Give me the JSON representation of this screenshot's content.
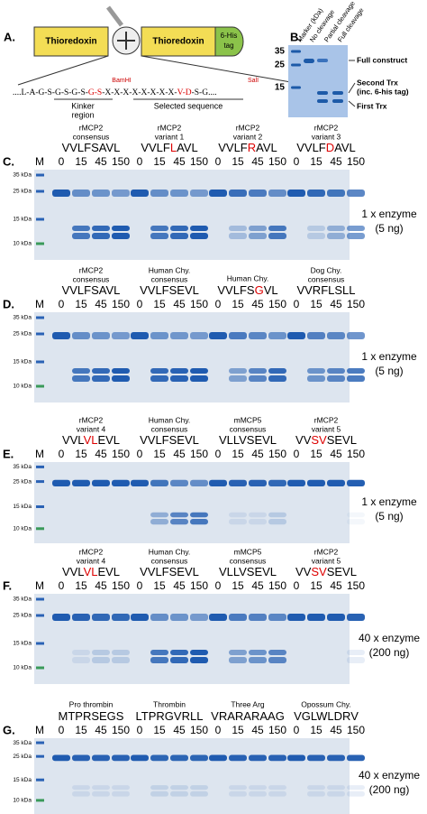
{
  "panelA": {
    "label": "A.",
    "box1": "Thioredoxin",
    "box2": "Thioredoxin",
    "tag": [
      "6-His",
      "tag"
    ],
    "sequence": [
      "....L-A-G-S-G-S-G-S-",
      "G-S",
      "-X-X-X-X-X-X-X-X-",
      "V-D",
      "-S-G...."
    ],
    "bamhi": "BamHI",
    "sali": "SalI",
    "kinker": [
      "Kinker",
      "region"
    ],
    "selected": "Selected sequence"
  },
  "panelB": {
    "label": "B.",
    "columns": [
      "Marker (kDa)",
      "No cleavage",
      "Partial cleavage",
      "Full cleavage"
    ],
    "markers": [
      "35",
      "25",
      "15"
    ],
    "annotations": [
      "Full construct",
      "Second Trx",
      "(inc. 6-his tag)",
      "First Trx"
    ]
  },
  "gels": [
    {
      "label": "C.",
      "marker_lane": "M",
      "markers": [
        "35 kDa",
        "25 kDa",
        "15 kDa",
        "10 kDa"
      ],
      "lanes": [
        "0",
        "15",
        "45",
        "150"
      ],
      "enzyme": "1 x enzyme",
      "amount": "(5 ng)",
      "groups": [
        {
          "name": [
            "rMCP2",
            "consensus"
          ],
          "sequence": [
            "VVLFSAVL"
          ]
        },
        {
          "name": [
            "rMCP2",
            "variant 1"
          ],
          "sequence": [
            "VVLF",
            "L",
            "AVL"
          ]
        },
        {
          "name": [
            "rMCP2",
            "variant 2"
          ],
          "sequence": [
            "VVLF",
            "R",
            "AVL"
          ]
        },
        {
          "name": [
            "rMCP2",
            "variant 3"
          ],
          "sequence": [
            "VVLF",
            "D",
            "AVL"
          ]
        }
      ]
    },
    {
      "label": "D.",
      "marker_lane": "M",
      "markers": [
        "35 kDa",
        "25 kDa",
        "15 kDa",
        "10 kDa"
      ],
      "lanes": [
        "0",
        "15",
        "45",
        "150"
      ],
      "enzyme": "1 x enzyme",
      "amount": "(5 ng)",
      "groups": [
        {
          "name": [
            "rMCP2",
            "consensus"
          ],
          "sequence": [
            "VVLFSAVL"
          ]
        },
        {
          "name": [
            "Human Chy.",
            "consensus"
          ],
          "sequence": [
            "VVLFSEVL"
          ]
        },
        {
          "name": [
            "Human Chy."
          ],
          "sequence": [
            "VVLFS",
            "G",
            "VL"
          ]
        },
        {
          "name": [
            "Dog Chy.",
            "consensus"
          ],
          "sequence": [
            "VVRFLSLL"
          ]
        }
      ]
    },
    {
      "label": "E.",
      "marker_lane": "M",
      "markers": [
        "35 kDa",
        "25 kDa",
        "15 kDa",
        "10 kDa"
      ],
      "lanes": [
        "0",
        "15",
        "45",
        "150"
      ],
      "enzyme": "1 x enzyme",
      "amount": "(5 ng)",
      "groups": [
        {
          "name": [
            "rMCP2",
            "variant 4"
          ],
          "sequence": [
            "VVL",
            "VL",
            "EVL"
          ]
        },
        {
          "name": [
            "Human Chy.",
            "consensus"
          ],
          "sequence": [
            "VVLFSEVL"
          ]
        },
        {
          "name": [
            "mMCP5",
            "consensus"
          ],
          "sequence": [
            "VLLVSEVL"
          ]
        },
        {
          "name": [
            "rMCP2",
            "variant 5"
          ],
          "sequence": [
            "VV",
            "SV",
            "SEVL"
          ]
        }
      ]
    },
    {
      "label": "F.",
      "marker_lane": "M",
      "markers": [
        "35 kDa",
        "25 kDa",
        "15 kDa",
        "10 kDa"
      ],
      "lanes": [
        "0",
        "15",
        "45",
        "150"
      ],
      "enzyme": "40 x enzyme",
      "amount": "(200 ng)",
      "groups": [
        {
          "name": [
            "rMCP2",
            "variant 4"
          ],
          "sequence": [
            "VVL",
            "VL",
            "EVL"
          ]
        },
        {
          "name": [
            "Human Chy.",
            "consensus"
          ],
          "sequence": [
            "VVLFSEVL"
          ]
        },
        {
          "name": [
            "mMCP5",
            "consensus"
          ],
          "sequence": [
            "VLLVSEVL"
          ]
        },
        {
          "name": [
            "rMCP2",
            "variant 5"
          ],
          "sequence": [
            "VV",
            "SV",
            "SEVL"
          ]
        }
      ]
    },
    {
      "label": "G.",
      "marker_lane": "M",
      "markers": [
        "35 kDa",
        "25 kDa",
        "15 kDa",
        "10 kDa"
      ],
      "lanes": [
        "0",
        "15",
        "45",
        "150"
      ],
      "enzyme": "40 x enzyme",
      "amount": "(200 ng)",
      "groups": [
        {
          "name": [
            "Pro thrombin"
          ],
          "sequence": [
            "MTPRSEGS"
          ]
        },
        {
          "name": [
            "Thrombin"
          ],
          "sequence": [
            "LTPRGVRLL"
          ]
        },
        {
          "name": [
            "Three Arg"
          ],
          "sequence": [
            "VRARARAAG"
          ]
        },
        {
          "name": [
            "Opossum Chy."
          ],
          "sequence": [
            "VGLWLDRV"
          ]
        }
      ]
    }
  ]
}
